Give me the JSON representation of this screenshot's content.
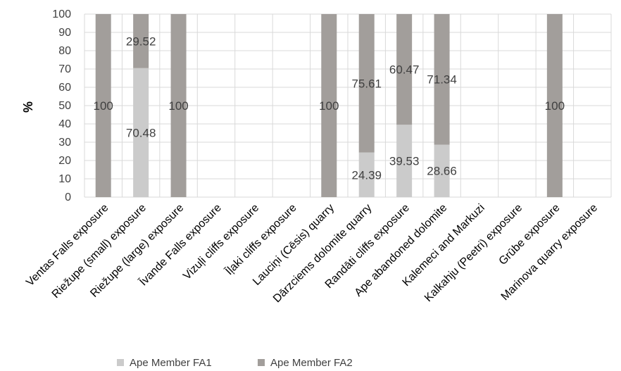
{
  "chart_data": {
    "type": "bar",
    "stacked": true,
    "categories": [
      "Ventas Falls exposure",
      "Riežupe (small) exposure",
      "Riežupe (large) exposure",
      "Īvande Falls exposure",
      "Vizuļi cliffs exposure",
      "Īļaki cliffs exposure",
      "Lauciņi (Cēsis) quarry",
      "Dārzciems dolomite quarry",
      "Randāti cliffs exposure",
      "Ape abandoned dolomite",
      "Kalemeci and Markuzi",
      "Kalkahju (Peetri) exposure",
      "Grūbe exposure",
      "Marinova quarry exposure"
    ],
    "series": [
      {
        "name": "Ape Member FA1",
        "color": "#cbcbcb",
        "values": [
          0,
          70.48,
          0,
          0,
          0,
          0,
          0,
          24.39,
          39.53,
          28.66,
          0,
          0,
          0,
          0
        ],
        "labels": [
          "",
          "70.48",
          "",
          "",
          "",
          "",
          "",
          "24.39",
          "39.53",
          "28.66",
          "",
          "",
          "",
          ""
        ]
      },
      {
        "name": "Ape Member FA2",
        "color": "#a29e9b",
        "values": [
          100,
          29.52,
          100,
          0,
          0,
          0,
          100,
          75.61,
          60.47,
          71.34,
          0,
          0,
          100,
          0
        ],
        "labels": [
          "100",
          "29.52",
          "100",
          "",
          "",
          "",
          "100",
          "75.61",
          "60.47",
          "71.34",
          "",
          "",
          "100",
          ""
        ]
      }
    ],
    "ylabel": "%",
    "xlabel": "",
    "ylim": [
      0,
      100
    ],
    "yticks": [
      "0",
      "10",
      "20",
      "30",
      "40",
      "50",
      "60",
      "70",
      "80",
      "90",
      "100"
    ],
    "grid": true,
    "legend": "bottom"
  }
}
